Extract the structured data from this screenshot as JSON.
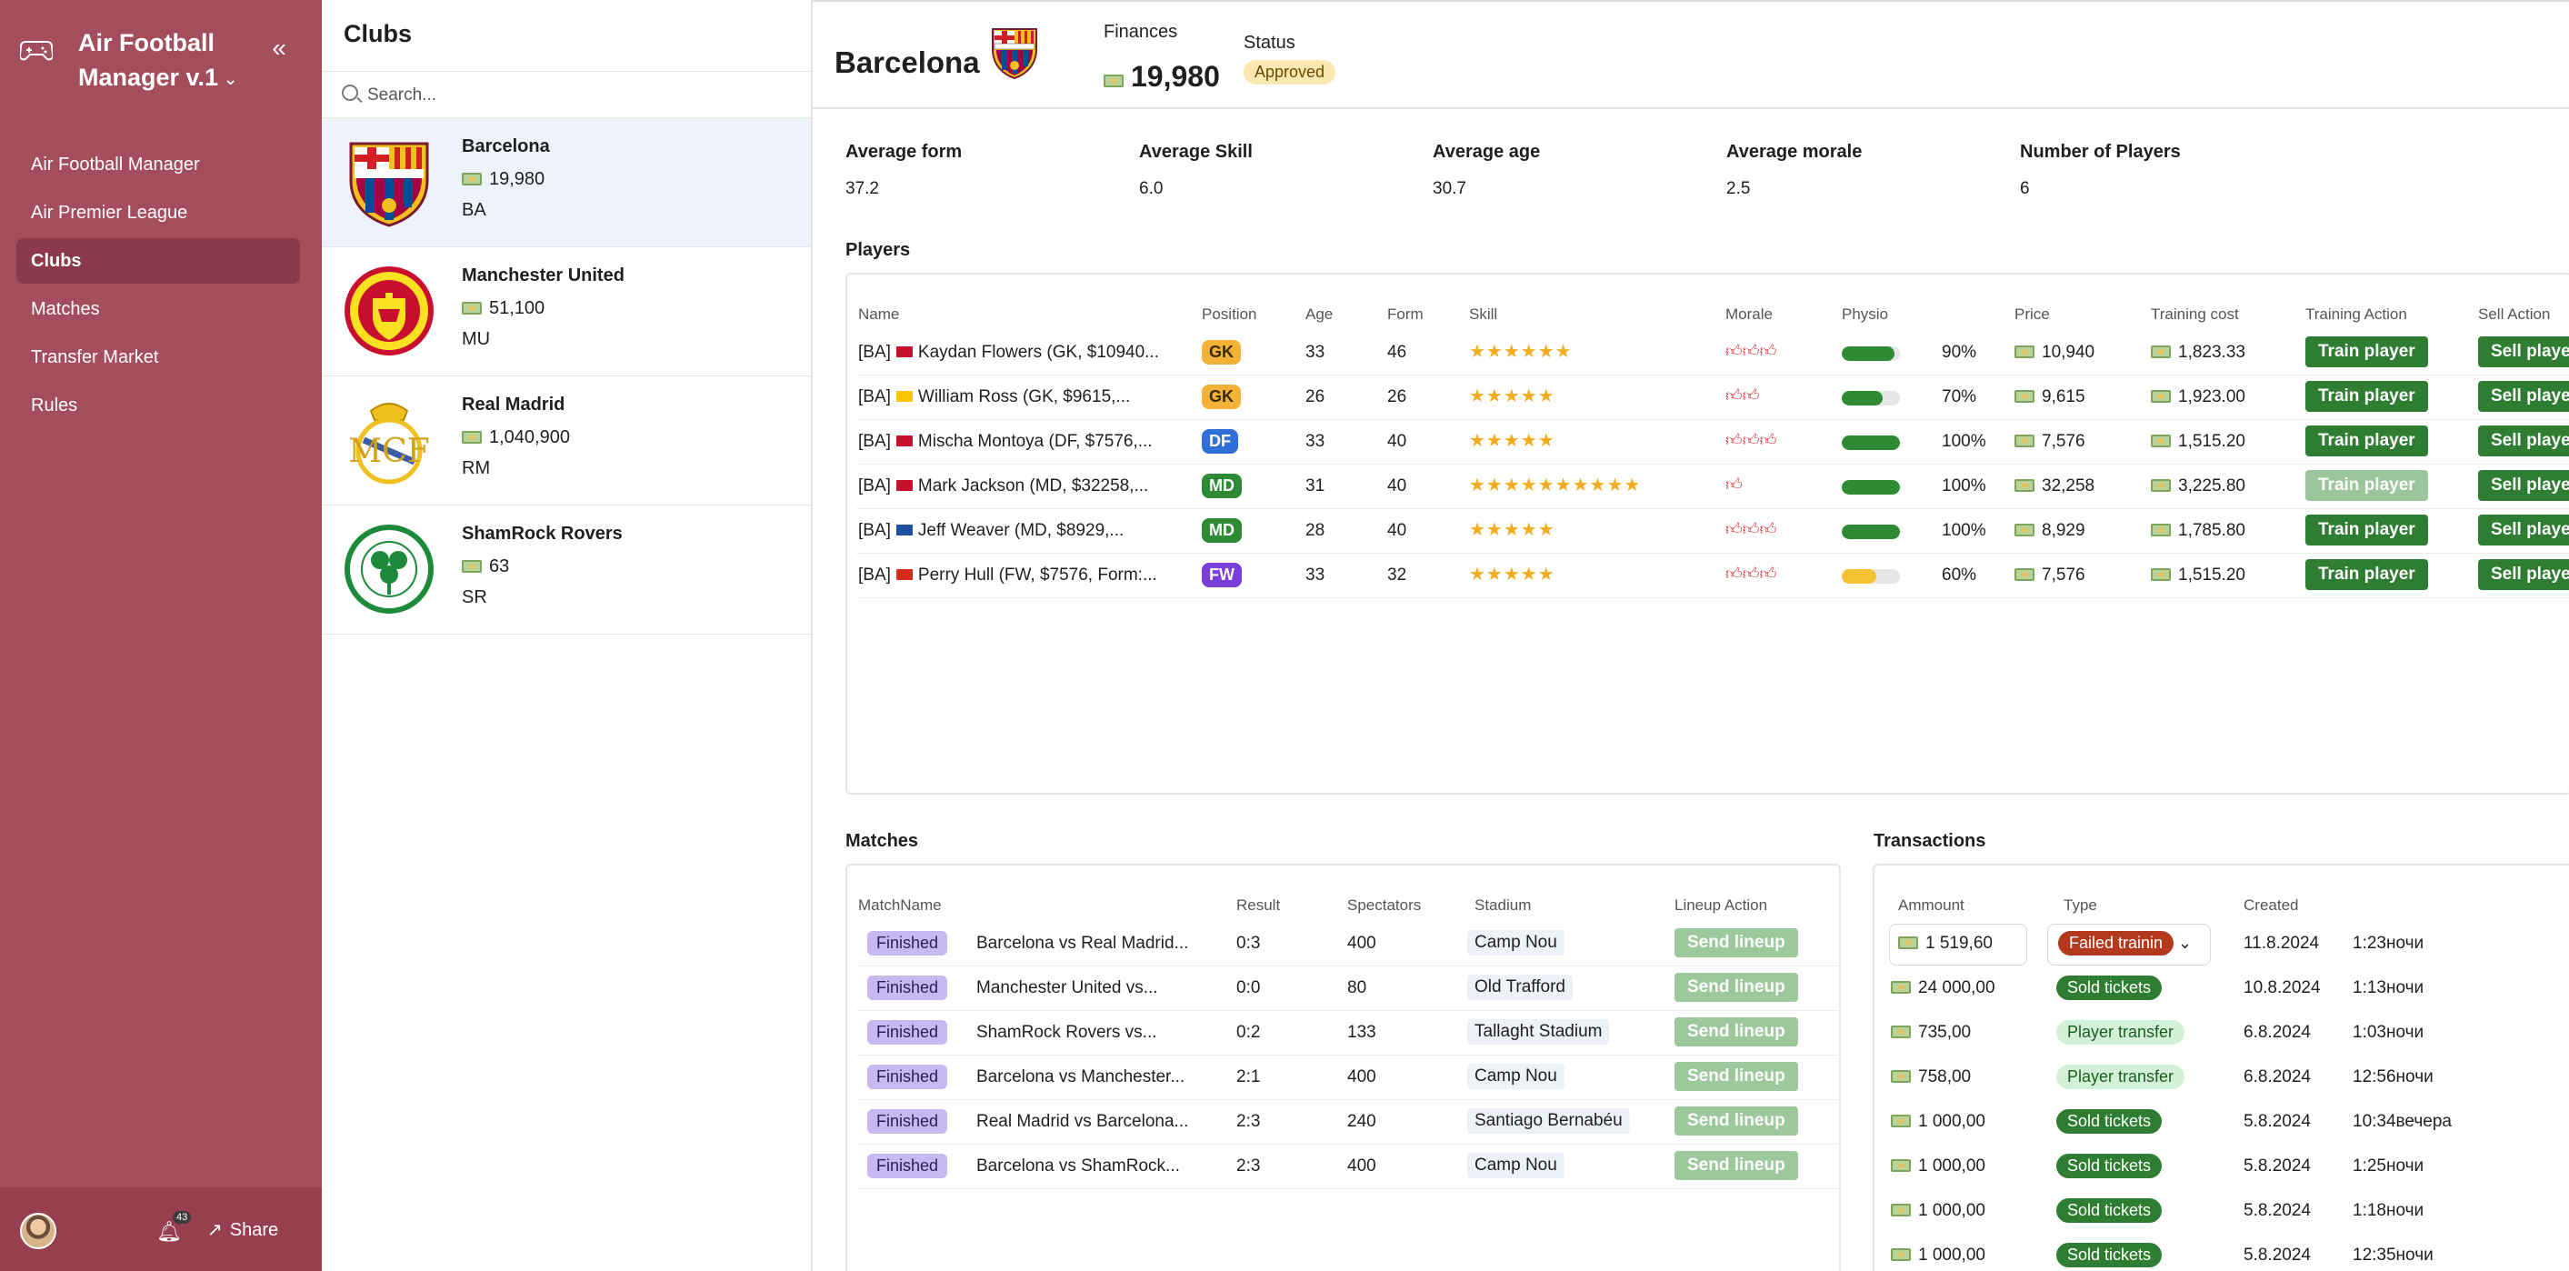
{
  "app": {
    "title": "Air Football Manager v.1"
  },
  "nav": [
    {
      "label": "Air Football Manager",
      "active": false
    },
    {
      "label": "Air Premier League",
      "active": false
    },
    {
      "label": "Clubs",
      "active": true
    },
    {
      "label": "Matches",
      "active": false
    },
    {
      "label": "Transfer Market",
      "active": false
    },
    {
      "label": "Rules",
      "active": false
    }
  ],
  "footer": {
    "notifications": "43",
    "share_label": "Share"
  },
  "clubs_panel": {
    "title": "Clubs",
    "search_placeholder": "Search...",
    "clubs": [
      {
        "name": "Barcelona",
        "money": "19,980",
        "abbr": "BA",
        "selected": true
      },
      {
        "name": "Manchester United",
        "money": "51,100",
        "abbr": "MU",
        "selected": false
      },
      {
        "name": "Real Madrid",
        "money": "1,040,900",
        "abbr": "RM",
        "selected": false
      },
      {
        "name": "ShamRock Rovers",
        "money": "63",
        "abbr": "SR",
        "selected": false
      }
    ]
  },
  "header": {
    "club_name": "Barcelona",
    "finances_label": "Finances",
    "finances_value": "19,980",
    "status_label": "Status",
    "status_value": "Approved"
  },
  "stats": [
    {
      "label": "Average form",
      "value": "37.2"
    },
    {
      "label": "Average Skill",
      "value": "6.0"
    },
    {
      "label": "Average age",
      "value": "30.7"
    },
    {
      "label": "Average morale",
      "value": "2.5"
    },
    {
      "label": "Number of Players",
      "value": "6"
    }
  ],
  "players": {
    "title": "Players",
    "columns": [
      "Name",
      "Position",
      "Age",
      "Form",
      "Skill",
      "Morale",
      "Physio",
      "Price",
      "Training cost",
      "Training Action",
      "Sell Action"
    ],
    "rows": [
      {
        "prefix": "[BA]",
        "flag": "#c8102e",
        "name": "Kaydan Flowers (GK, $10940...",
        "position": "GK",
        "age": "33",
        "form": "46",
        "stars": 6,
        "morale": 3,
        "physio": 90,
        "physio_text": "90%",
        "price": "10,940",
        "training_cost": "1,823.33",
        "train_label": "Train player",
        "train_disabled": false,
        "sell_label": "Sell player"
      },
      {
        "prefix": "[BA]",
        "flag": "#f7c600",
        "name": "William Ross (GK, $9615,...",
        "position": "GK",
        "age": "26",
        "form": "26",
        "stars": 5,
        "morale": 2,
        "physio": 70,
        "physio_text": "70%",
        "price": "9,615",
        "training_cost": "1,923.00",
        "train_label": "Train player",
        "train_disabled": false,
        "sell_label": "Sell player"
      },
      {
        "prefix": "[BA]",
        "flag": "#c8102e",
        "name": "Mischa Montoya (DF, $7576,...",
        "position": "DF",
        "age": "33",
        "form": "40",
        "stars": 5,
        "morale": 3,
        "physio": 100,
        "physio_text": "100%",
        "price": "7,576",
        "training_cost": "1,515.20",
        "train_label": "Train player",
        "train_disabled": false,
        "sell_label": "Sell player"
      },
      {
        "prefix": "[BA]",
        "flag": "#c8102e",
        "name": "Mark Jackson (MD, $32258,...",
        "position": "MD",
        "age": "31",
        "form": "40",
        "stars": 10,
        "morale": 1,
        "physio": 100,
        "physio_text": "100%",
        "price": "32,258",
        "training_cost": "3,225.80",
        "train_label": "Train player",
        "train_disabled": true,
        "sell_label": "Sell player"
      },
      {
        "prefix": "[BA]",
        "flag": "#1f4fa0",
        "name": "Jeff Weaver (MD, $8929,...",
        "position": "MD",
        "age": "28",
        "form": "40",
        "stars": 5,
        "morale": 3,
        "physio": 100,
        "physio_text": "100%",
        "price": "8,929",
        "training_cost": "1,785.80",
        "train_label": "Train player",
        "train_disabled": false,
        "sell_label": "Sell player"
      },
      {
        "prefix": "[BA]",
        "flag": "#d52b1e",
        "name": "Perry Hull (FW, $7576, Form:...",
        "position": "FW",
        "age": "33",
        "form": "32",
        "stars": 5,
        "morale": 3,
        "physio": 60,
        "physio_text": "60%",
        "price": "7,576",
        "training_cost": "1,515.20",
        "train_label": "Train player",
        "train_disabled": false,
        "sell_label": "Sell player"
      }
    ]
  },
  "matches": {
    "title": "Matches",
    "columns": [
      "MatchName",
      "Result",
      "Spectators",
      "Stadium",
      "Lineup Action"
    ],
    "rows": [
      {
        "status": "Finished",
        "name": "Barcelona vs Real Madrid...",
        "result": "0:3",
        "spectators": "400",
        "stadium": "Camp Nou",
        "action": "Send lineup"
      },
      {
        "status": "Finished",
        "name": "Manchester United vs...",
        "result": "0:0",
        "spectators": "80",
        "stadium": "Old Trafford",
        "action": "Send lineup"
      },
      {
        "status": "Finished",
        "name": "ShamRock Rovers vs...",
        "result": "0:2",
        "spectators": "133",
        "stadium": "Tallaght Stadium",
        "action": "Send lineup"
      },
      {
        "status": "Finished",
        "name": "Barcelona vs Manchester...",
        "result": "2:1",
        "spectators": "400",
        "stadium": "Camp Nou",
        "action": "Send lineup"
      },
      {
        "status": "Finished",
        "name": "Real Madrid vs Barcelona...",
        "result": "2:3",
        "spectators": "240",
        "stadium": "Santiago Bernabéu",
        "action": "Send lineup"
      },
      {
        "status": "Finished",
        "name": "Barcelona vs ShamRock...",
        "result": "2:3",
        "spectators": "400",
        "stadium": "Camp Nou",
        "action": "Send lineup"
      }
    ]
  },
  "transactions": {
    "title": "Transactions",
    "columns": [
      "Ammount",
      "Type",
      "Created"
    ],
    "rows": [
      {
        "amount": "1 519,60",
        "type": "Failed trainin",
        "kind": "failed",
        "date": "11.8.2024",
        "time": "1:23ночи",
        "editing": true
      },
      {
        "amount": "24 000,00",
        "type": "Sold tickets",
        "kind": "sold",
        "date": "10.8.2024",
        "time": "1:13ночи",
        "editing": false
      },
      {
        "amount": "735,00",
        "type": "Player transfer",
        "kind": "transfer",
        "date": "6.8.2024",
        "time": "1:03ночи",
        "editing": false
      },
      {
        "amount": "758,00",
        "type": "Player transfer",
        "kind": "transfer",
        "date": "6.8.2024",
        "time": "12:56ночи",
        "editing": false
      },
      {
        "amount": "1 000,00",
        "type": "Sold tickets",
        "kind": "sold",
        "date": "5.8.2024",
        "time": "10:34вечера",
        "editing": false
      },
      {
        "amount": "1 000,00",
        "type": "Sold tickets",
        "kind": "sold",
        "date": "5.8.2024",
        "time": "1:25ночи",
        "editing": false
      },
      {
        "amount": "1 000,00",
        "type": "Sold tickets",
        "kind": "sold",
        "date": "5.8.2024",
        "time": "1:18ночи",
        "editing": false
      },
      {
        "amount": "1 000,00",
        "type": "Sold tickets",
        "kind": "sold",
        "date": "5.8.2024",
        "time": "12:35ночи",
        "editing": false
      }
    ]
  }
}
